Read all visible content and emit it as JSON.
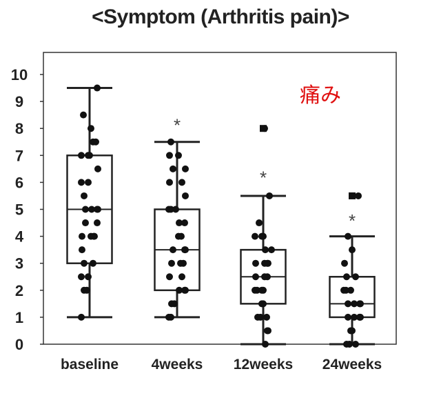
{
  "chart_data": {
    "type": "box",
    "title": "<Symptom (Arthritis pain)>",
    "annotation": "痛み",
    "annotation_color": "#e01010",
    "categories": [
      "baseline",
      "4weeks",
      "12weeks",
      "24weeks"
    ],
    "ylim": [
      0,
      10
    ],
    "yticks": [
      0,
      1,
      2,
      3,
      4,
      5,
      6,
      7,
      8,
      9,
      10
    ],
    "boxes": [
      {
        "category": "baseline",
        "whisker_low": 1,
        "q1": 3,
        "median": 5,
        "q3": 7,
        "whisker_high": 9.5,
        "outliers": [],
        "significance": ""
      },
      {
        "category": "4weeks",
        "whisker_low": 1,
        "q1": 2,
        "median": 3.5,
        "q3": 5,
        "whisker_high": 7.5,
        "outliers": [],
        "significance": "*"
      },
      {
        "category": "12weeks",
        "whisker_low": 0,
        "q1": 1.5,
        "median": 2.5,
        "q3": 3.5,
        "whisker_high": 5.5,
        "outliers": [
          8
        ],
        "significance": "*"
      },
      {
        "category": "24weeks",
        "whisker_low": 0,
        "q1": 1,
        "median": 1.5,
        "q3": 2.5,
        "whisker_high": 4,
        "outliers": [
          5.5
        ],
        "significance": "*"
      }
    ],
    "points": [
      [
        9.5,
        8.5,
        8,
        7.5,
        7.5,
        7,
        7,
        7,
        6.5,
        6,
        6,
        5.5,
        5,
        5,
        5,
        5,
        4.5,
        4.5,
        4,
        4,
        4,
        4,
        3.5,
        3,
        3,
        2.5,
        2.5,
        2,
        2,
        1
      ],
      [
        7.5,
        7,
        7,
        6.5,
        6.5,
        6,
        6,
        5.5,
        5,
        5,
        5,
        4.5,
        4.5,
        4,
        4,
        3.5,
        3.5,
        3.5,
        3,
        3,
        3,
        2.5,
        2.5,
        2,
        2,
        2,
        1.5,
        1.5,
        1,
        1
      ],
      [
        8,
        5.5,
        4.5,
        4,
        4,
        4,
        3.5,
        3.5,
        3,
        3,
        3,
        3,
        2.5,
        2.5,
        2.5,
        2,
        2,
        2,
        2,
        1.5,
        1.5,
        1,
        1,
        1,
        0.5,
        0.5,
        0
      ],
      [
        5.5,
        4,
        3.5,
        3,
        2.5,
        2.5,
        2,
        2,
        2,
        1.5,
        1.5,
        1.5,
        1.5,
        1,
        1,
        1,
        1,
        1,
        0.5,
        0.5,
        0,
        0,
        0
      ]
    ],
    "colors": {
      "dots": "#111111",
      "box": "#222222",
      "significance": "#444444"
    },
    "grid": false,
    "legend": "none"
  }
}
